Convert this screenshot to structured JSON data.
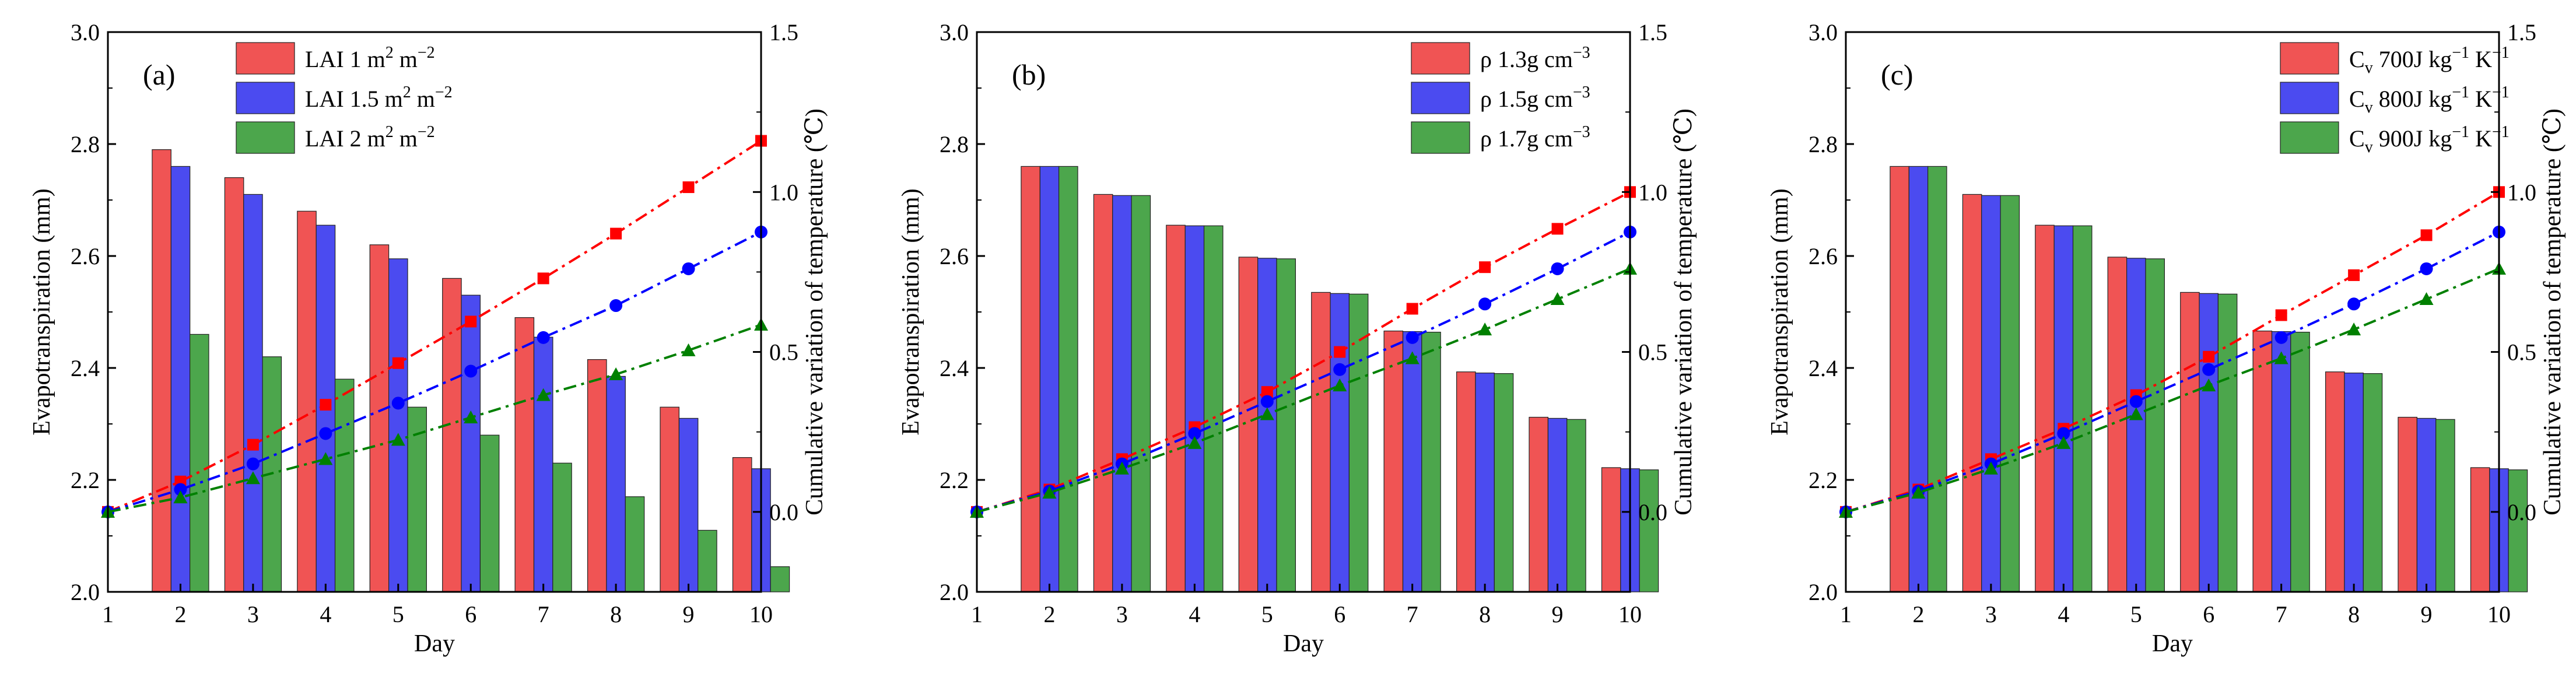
{
  "colors": {
    "red": "#f05454",
    "blue": "#4b4bf0",
    "green": "#4ca64c",
    "red_line": "#ff0000",
    "blue_line": "#0000ff",
    "green_line": "#008000"
  },
  "chart_data": [
    {
      "type": "bar+line",
      "panel_label": "(a)",
      "xlabel": "Day",
      "ylabel": "Evapotranspiration (mm)",
      "y2label": "Cumulative variation of temperature (℃)",
      "categories": [
        1,
        2,
        3,
        4,
        5,
        6,
        7,
        8,
        9,
        10
      ],
      "xlim": [
        1,
        10
      ],
      "ylim": [
        2.0,
        3.0
      ],
      "y2lim": [
        -0.25,
        1.5
      ],
      "yticks": [
        "2.0",
        "2.2",
        "2.4",
        "2.6",
        "2.8",
        "3.0"
      ],
      "y2ticks": [
        "0.0",
        "0.5",
        "1.0",
        "1.5"
      ],
      "legend": {
        "placement": "top-right"
      },
      "series": [
        {
          "name": "LAI 1",
          "legend_parts": {
            "prefix": "LAI  1 m",
            "sup1": "2",
            "mid": " m",
            "sup2": "−2"
          },
          "color": "red",
          "bars": [
            null,
            2.79,
            2.74,
            2.68,
            2.62,
            2.56,
            2.49,
            2.415,
            2.33,
            2.24
          ],
          "temperature": [
            0.0,
            0.095,
            0.21,
            0.335,
            0.465,
            0.595,
            0.73,
            0.87,
            1.015,
            1.16
          ]
        },
        {
          "name": "LAI 1.5",
          "legend_parts": {
            "prefix": "LAI  1.5 m",
            "sup1": "2",
            "mid": " m",
            "sup2": "−2"
          },
          "color": "blue",
          "bars": [
            null,
            2.76,
            2.71,
            2.655,
            2.595,
            2.53,
            2.455,
            2.385,
            2.31,
            2.22
          ],
          "temperature": [
            0.0,
            0.07,
            0.15,
            0.245,
            0.34,
            0.44,
            0.545,
            0.645,
            0.76,
            0.875
          ]
        },
        {
          "name": "LAI 2",
          "legend_parts": {
            "prefix": "LAI  2 m",
            "sup1": "2",
            "mid": " m",
            "sup2": "−2"
          },
          "color": "green",
          "bars": [
            null,
            2.46,
            2.42,
            2.38,
            2.33,
            2.28,
            2.23,
            2.17,
            2.11,
            2.045
          ],
          "temperature": [
            0.0,
            0.045,
            0.105,
            0.165,
            0.225,
            0.295,
            0.365,
            0.43,
            0.505,
            0.585
          ]
        }
      ]
    },
    {
      "type": "bar+line",
      "panel_label": "(b)",
      "xlabel": "Day",
      "ylabel": "Evapotranspiration (mm)",
      "y2label": "Cumulative variation of temperature (℃)",
      "categories": [
        1,
        2,
        3,
        4,
        5,
        6,
        7,
        8,
        9,
        10
      ],
      "xlim": [
        1,
        10
      ],
      "ylim": [
        2.0,
        3.0
      ],
      "y2lim": [
        -0.25,
        1.5
      ],
      "yticks": [
        "2.0",
        "2.2",
        "2.4",
        "2.6",
        "2.8",
        "3.0"
      ],
      "y2ticks": [
        "0.0",
        "0.5",
        "1.0",
        "1.5"
      ],
      "legend": {
        "placement": "top-right"
      },
      "series": [
        {
          "name": "rho 1.3",
          "legend_parts": {
            "prefix": "ρ 1.3g cm",
            "sup1": "−3",
            "mid": "",
            "sup2": ""
          },
          "color": "red",
          "bars": [
            null,
            2.76,
            2.71,
            2.655,
            2.598,
            2.535,
            2.466,
            2.393,
            2.312,
            2.222
          ],
          "temperature": [
            0.0,
            0.07,
            0.165,
            0.265,
            0.375,
            0.5,
            0.635,
            0.765,
            0.885,
            1.0
          ]
        },
        {
          "name": "rho 1.5",
          "legend_parts": {
            "prefix": "ρ 1.5g cm",
            "sup1": "−3",
            "mid": "",
            "sup2": ""
          },
          "color": "blue",
          "bars": [
            null,
            2.76,
            2.708,
            2.654,
            2.596,
            2.533,
            2.465,
            2.391,
            2.31,
            2.22
          ],
          "temperature": [
            0.0,
            0.065,
            0.15,
            0.245,
            0.345,
            0.445,
            0.545,
            0.65,
            0.76,
            0.875
          ]
        },
        {
          "name": "rho 1.7",
          "legend_parts": {
            "prefix": "ρ 1.7g cm",
            "sup1": "−3",
            "mid": "",
            "sup2": ""
          },
          "color": "green",
          "bars": [
            null,
            2.76,
            2.708,
            2.654,
            2.595,
            2.532,
            2.464,
            2.39,
            2.308,
            2.218
          ],
          "temperature": [
            0.0,
            0.06,
            0.135,
            0.215,
            0.305,
            0.395,
            0.48,
            0.57,
            0.665,
            0.76
          ]
        }
      ]
    },
    {
      "type": "bar+line",
      "panel_label": "(c)",
      "xlabel": "Day",
      "ylabel": "Evapotranspiration (mm)",
      "y2label": "Cumulative variation of temperature (℃)",
      "categories": [
        1,
        2,
        3,
        4,
        5,
        6,
        7,
        8,
        9,
        10
      ],
      "xlim": [
        1,
        10
      ],
      "ylim": [
        2.0,
        3.0
      ],
      "y2lim": [
        -0.25,
        1.5
      ],
      "yticks": [
        "2.0",
        "2.2",
        "2.4",
        "2.6",
        "2.8",
        "3.0"
      ],
      "y2ticks": [
        "0.0",
        "0.5",
        "1.0",
        "1.5"
      ],
      "legend": {
        "placement": "top-right"
      },
      "series": [
        {
          "name": "Cv 700",
          "legend_parts": {
            "prefix": "C",
            "sub": "v",
            "prefix2": " 700J kg",
            "sup1": "−1",
            "mid": " K",
            "sup2": "−1"
          },
          "color": "red",
          "bars": [
            null,
            2.76,
            2.71,
            2.655,
            2.598,
            2.535,
            2.466,
            2.393,
            2.312,
            2.222
          ],
          "temperature": [
            0.0,
            0.07,
            0.165,
            0.26,
            0.365,
            0.485,
            0.615,
            0.74,
            0.865,
            1.0
          ]
        },
        {
          "name": "Cv 800",
          "legend_parts": {
            "prefix": "C",
            "sub": "v",
            "prefix2": " 800J kg",
            "sup1": "−1",
            "mid": " K",
            "sup2": "−1"
          },
          "color": "blue",
          "bars": [
            null,
            2.76,
            2.708,
            2.654,
            2.596,
            2.533,
            2.465,
            2.391,
            2.31,
            2.22
          ],
          "temperature": [
            0.0,
            0.065,
            0.15,
            0.245,
            0.345,
            0.445,
            0.545,
            0.65,
            0.76,
            0.875
          ]
        },
        {
          "name": "Cv 900",
          "legend_parts": {
            "prefix": "C",
            "sub": "v",
            "prefix2": " 900J kg",
            "sup1": "−1",
            "mid": " K",
            "sup2": "−1"
          },
          "color": "green",
          "bars": [
            null,
            2.76,
            2.708,
            2.654,
            2.595,
            2.532,
            2.464,
            2.39,
            2.308,
            2.218
          ],
          "temperature": [
            0.0,
            0.06,
            0.135,
            0.215,
            0.305,
            0.395,
            0.48,
            0.57,
            0.665,
            0.76
          ]
        }
      ]
    }
  ]
}
